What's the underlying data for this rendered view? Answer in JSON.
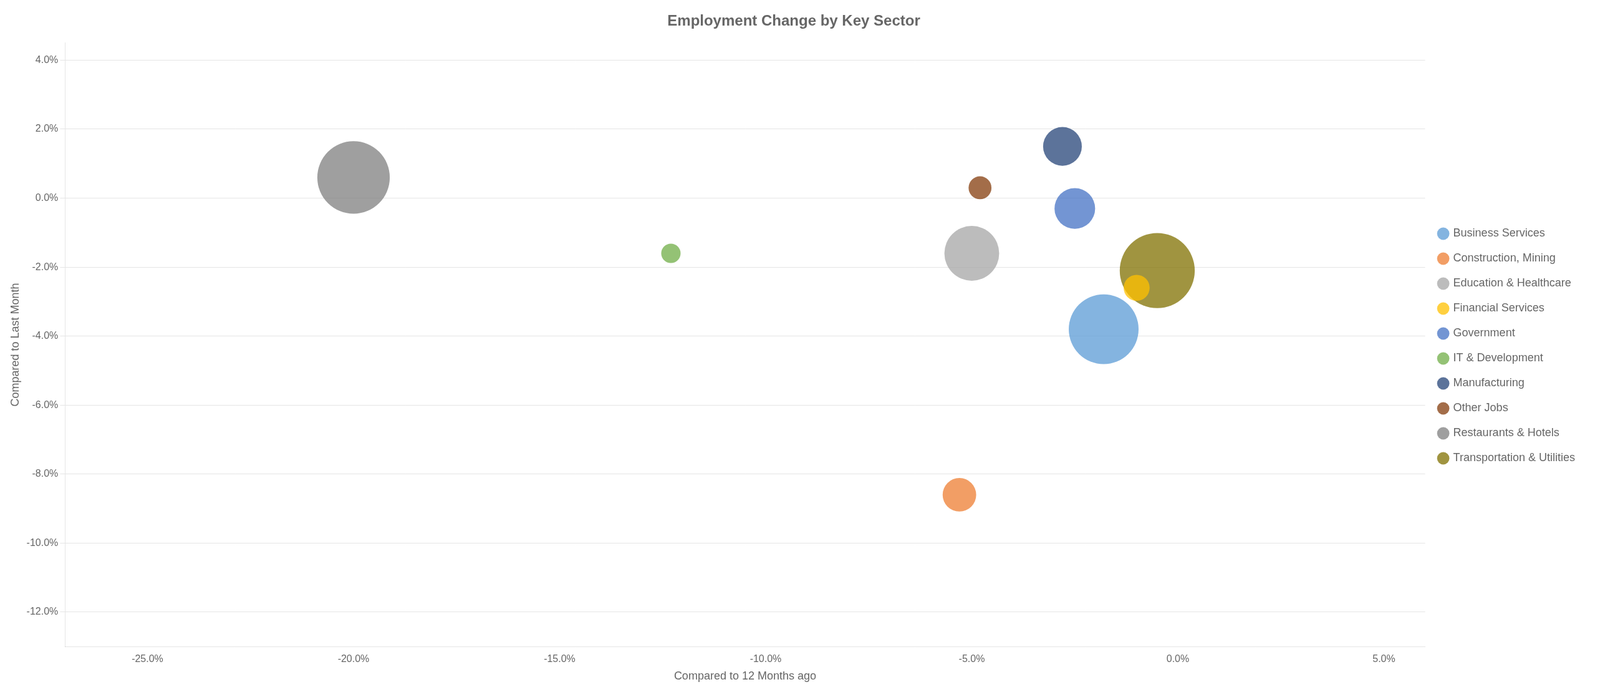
{
  "chart_data": {
    "type": "bubble",
    "title": "Employment Change by Key Sector",
    "xlabel": "Compared to 12 Months ago",
    "ylabel": "Compared to Last Month",
    "xlim": [
      -0.27,
      0.06
    ],
    "ylim": [
      -0.13,
      0.045
    ],
    "xticks": [
      {
        "value": -0.25,
        "label": "-25.0%"
      },
      {
        "value": -0.2,
        "label": "-20.0%"
      },
      {
        "value": -0.15,
        "label": "-15.0%"
      },
      {
        "value": -0.1,
        "label": "-10.0%"
      },
      {
        "value": -0.05,
        "label": "-5.0%"
      },
      {
        "value": 0.0,
        "label": "0.0%"
      },
      {
        "value": 0.05,
        "label": "5.0%"
      }
    ],
    "yticks": [
      {
        "value": -0.12,
        "label": "-12.0%"
      },
      {
        "value": -0.1,
        "label": "-10.0%"
      },
      {
        "value": -0.08,
        "label": "-8.0%"
      },
      {
        "value": -0.06,
        "label": "-6.0%"
      },
      {
        "value": -0.04,
        "label": "-4.0%"
      },
      {
        "value": -0.02,
        "label": "-2.0%"
      },
      {
        "value": 0.0,
        "label": "0.0%"
      },
      {
        "value": 0.02,
        "label": "2.0%"
      },
      {
        "value": 0.04,
        "label": "4.0%"
      }
    ],
    "grid": "y",
    "legend": "right",
    "series": [
      {
        "name": "Business Services",
        "color": "#5b9bd5",
        "x": [
          -0.018
        ],
        "y": [
          -0.038
        ],
        "size": [
          6500
        ]
      },
      {
        "name": "Construction, Mining",
        "color": "#ed7d31",
        "x": [
          -0.053
        ],
        "y": [
          -0.086
        ],
        "size": [
          1500
        ]
      },
      {
        "name": "Education & Healthcare",
        "color": "#a5a5a5",
        "x": [
          -0.05
        ],
        "y": [
          -0.016
        ],
        "size": [
          4000
        ]
      },
      {
        "name": "Financial Services",
        "color": "#ffc000",
        "x": [
          -0.01
        ],
        "y": [
          -0.026
        ],
        "size": [
          900
        ]
      },
      {
        "name": "Government",
        "color": "#4472c4",
        "x": [
          -0.025
        ],
        "y": [
          -0.003
        ],
        "size": [
          2200
        ]
      },
      {
        "name": "IT & Development",
        "color": "#70ad47",
        "x": [
          -0.123
        ],
        "y": [
          -0.016
        ],
        "size": [
          500
        ]
      },
      {
        "name": "Manufacturing",
        "color": "#264478",
        "x": [
          -0.028
        ],
        "y": [
          0.015
        ],
        "size": [
          2000
        ]
      },
      {
        "name": "Other Jobs",
        "color": "#843c0c",
        "x": [
          -0.048
        ],
        "y": [
          0.003
        ],
        "size": [
          700
        ]
      },
      {
        "name": "Restaurants & Hotels",
        "color": "#7f7f7f",
        "x": [
          -0.2
        ],
        "y": [
          0.006
        ],
        "size": [
          7000
        ]
      },
      {
        "name": "Transportation & Utilities",
        "color": "#807000",
        "x": [
          -0.005
        ],
        "y": [
          -0.021
        ],
        "size": [
          7500
        ]
      }
    ]
  }
}
